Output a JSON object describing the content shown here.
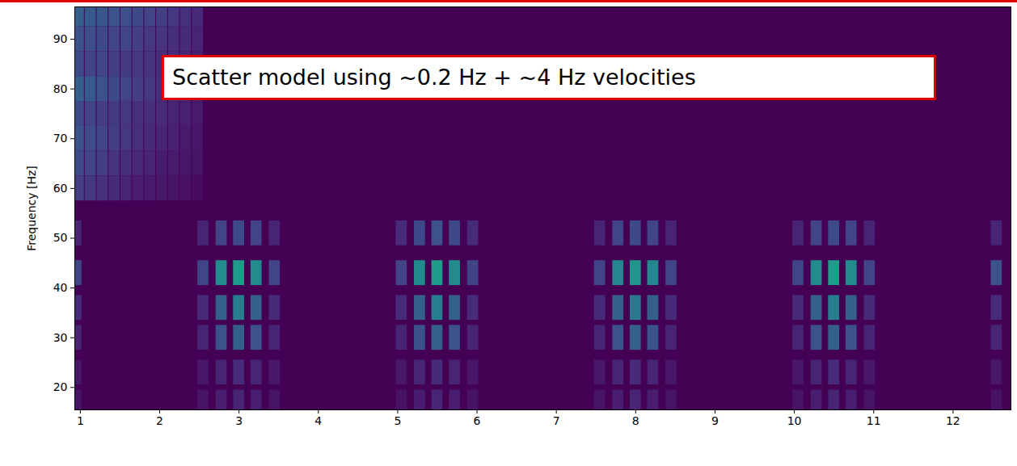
{
  "chart_data": {
    "type": "heatmap",
    "annotations": [
      "Scatter model using ~0.2 Hz + ~4 Hz velocities"
    ],
    "ylabel": "Frequency [Hz]",
    "xlim": [
      0.93,
      12.73
    ],
    "ylim": [
      15.5,
      96.5
    ],
    "xticks": [
      1,
      2,
      3,
      4,
      5,
      6,
      7,
      8,
      9,
      10,
      11,
      12
    ],
    "yticks": [
      20,
      30,
      40,
      50,
      60,
      70,
      80,
      90
    ],
    "zlim": [
      0,
      1
    ],
    "cell_width": 0.14,
    "cell_height": 5,
    "cells": [
      [
        0.98,
        95,
        0.3
      ],
      [
        1.13,
        95,
        0.28
      ],
      [
        1.28,
        95,
        0.27
      ],
      [
        1.43,
        95,
        0.25
      ],
      [
        1.58,
        95,
        0.24
      ],
      [
        1.73,
        95,
        0.22
      ],
      [
        1.88,
        95,
        0.2
      ],
      [
        2.03,
        95,
        0.18
      ],
      [
        2.18,
        95,
        0.16
      ],
      [
        2.33,
        95,
        0.14
      ],
      [
        2.48,
        95,
        0.12
      ],
      [
        0.98,
        90,
        0.25
      ],
      [
        1.13,
        90,
        0.24
      ],
      [
        1.28,
        90,
        0.22
      ],
      [
        1.43,
        90,
        0.2
      ],
      [
        1.58,
        90,
        0.2
      ],
      [
        1.73,
        90,
        0.18
      ],
      [
        1.88,
        90,
        0.16
      ],
      [
        2.03,
        90,
        0.15
      ],
      [
        2.18,
        90,
        0.13
      ],
      [
        2.33,
        90,
        0.12
      ],
      [
        2.48,
        90,
        0.1
      ],
      [
        0.98,
        85,
        0.22
      ],
      [
        1.13,
        85,
        0.2
      ],
      [
        1.28,
        85,
        0.2
      ],
      [
        1.43,
        85,
        0.18
      ],
      [
        1.58,
        85,
        0.17
      ],
      [
        1.73,
        85,
        0.16
      ],
      [
        1.88,
        85,
        0.15
      ],
      [
        2.03,
        85,
        0.13
      ],
      [
        2.18,
        85,
        0.12
      ],
      [
        2.33,
        85,
        0.1
      ],
      [
        2.48,
        85,
        0.09
      ],
      [
        0.98,
        80,
        0.3
      ],
      [
        1.13,
        80,
        0.28
      ],
      [
        1.28,
        80,
        0.25
      ],
      [
        1.43,
        80,
        0.22
      ],
      [
        1.58,
        80,
        0.2
      ],
      [
        1.73,
        80,
        0.18
      ],
      [
        1.88,
        80,
        0.16
      ],
      [
        2.03,
        80,
        0.14
      ],
      [
        2.18,
        80,
        0.12
      ],
      [
        2.33,
        80,
        0.1
      ],
      [
        2.48,
        80,
        0.08
      ],
      [
        0.98,
        75,
        0.22
      ],
      [
        1.13,
        75,
        0.2
      ],
      [
        1.28,
        75,
        0.18
      ],
      [
        1.43,
        75,
        0.17
      ],
      [
        1.58,
        75,
        0.16
      ],
      [
        1.73,
        75,
        0.14
      ],
      [
        1.88,
        75,
        0.13
      ],
      [
        2.03,
        75,
        0.12
      ],
      [
        2.18,
        75,
        0.1
      ],
      [
        2.33,
        75,
        0.09
      ],
      [
        2.48,
        75,
        0.07
      ],
      [
        0.98,
        70,
        0.25
      ],
      [
        1.13,
        70,
        0.23
      ],
      [
        1.28,
        70,
        0.2
      ],
      [
        1.43,
        70,
        0.18
      ],
      [
        1.58,
        70,
        0.16
      ],
      [
        1.73,
        70,
        0.14
      ],
      [
        1.88,
        70,
        0.12
      ],
      [
        2.03,
        70,
        0.1
      ],
      [
        2.18,
        70,
        0.09
      ],
      [
        2.33,
        70,
        0.07
      ],
      [
        2.48,
        70,
        0.06
      ],
      [
        0.98,
        65,
        0.22
      ],
      [
        1.13,
        65,
        0.2
      ],
      [
        1.28,
        65,
        0.18
      ],
      [
        1.43,
        65,
        0.15
      ],
      [
        1.58,
        65,
        0.13
      ],
      [
        1.73,
        65,
        0.11
      ],
      [
        1.88,
        65,
        0.1
      ],
      [
        2.03,
        65,
        0.08
      ],
      [
        2.18,
        65,
        0.07
      ],
      [
        2.33,
        65,
        0.06
      ],
      [
        2.48,
        65,
        0.05
      ],
      [
        0.98,
        60,
        0.18
      ],
      [
        1.13,
        60,
        0.16
      ],
      [
        1.28,
        60,
        0.14
      ],
      [
        1.43,
        60,
        0.12
      ],
      [
        1.58,
        60,
        0.1
      ],
      [
        1.73,
        60,
        0.08
      ],
      [
        1.88,
        60,
        0.07
      ],
      [
        2.03,
        60,
        0.06
      ],
      [
        2.18,
        60,
        0.05
      ],
      [
        2.33,
        60,
        0.04
      ],
      [
        2.48,
        60,
        0.03
      ],
      [
        0.95,
        17,
        0.05
      ],
      [
        0.95,
        23,
        0.06
      ],
      [
        0.95,
        30,
        0.1
      ],
      [
        0.95,
        36,
        0.12
      ],
      [
        0.95,
        43,
        0.2
      ],
      [
        0.95,
        51,
        0.1
      ],
      [
        2.55,
        17,
        0.05
      ],
      [
        2.55,
        23,
        0.06
      ],
      [
        2.55,
        30,
        0.1
      ],
      [
        2.55,
        36,
        0.12
      ],
      [
        2.55,
        43,
        0.2
      ],
      [
        2.55,
        51,
        0.1
      ],
      [
        2.78,
        17,
        0.08
      ],
      [
        2.78,
        23,
        0.1
      ],
      [
        2.78,
        30,
        0.25
      ],
      [
        2.78,
        36,
        0.3
      ],
      [
        2.78,
        43,
        0.48
      ],
      [
        2.78,
        51,
        0.2
      ],
      [
        3.0,
        17,
        0.1
      ],
      [
        3.0,
        23,
        0.12
      ],
      [
        3.0,
        30,
        0.3
      ],
      [
        3.0,
        36,
        0.42
      ],
      [
        3.0,
        43,
        0.55
      ],
      [
        3.0,
        51,
        0.22
      ],
      [
        3.22,
        17,
        0.08
      ],
      [
        3.22,
        23,
        0.1
      ],
      [
        3.22,
        30,
        0.25
      ],
      [
        3.22,
        36,
        0.3
      ],
      [
        3.22,
        43,
        0.48
      ],
      [
        3.22,
        51,
        0.2
      ],
      [
        3.45,
        17,
        0.05
      ],
      [
        3.45,
        23,
        0.06
      ],
      [
        3.45,
        30,
        0.1
      ],
      [
        3.45,
        36,
        0.12
      ],
      [
        3.45,
        43,
        0.2
      ],
      [
        3.45,
        51,
        0.1
      ],
      [
        5.05,
        17,
        0.05
      ],
      [
        5.05,
        23,
        0.06
      ],
      [
        5.05,
        30,
        0.1
      ],
      [
        5.05,
        36,
        0.12
      ],
      [
        5.05,
        43,
        0.2
      ],
      [
        5.05,
        51,
        0.12
      ],
      [
        5.28,
        17,
        0.08
      ],
      [
        5.28,
        23,
        0.1
      ],
      [
        5.28,
        30,
        0.25
      ],
      [
        5.28,
        36,
        0.3
      ],
      [
        5.28,
        43,
        0.48
      ],
      [
        5.28,
        51,
        0.22
      ],
      [
        5.5,
        17,
        0.1
      ],
      [
        5.5,
        23,
        0.12
      ],
      [
        5.5,
        30,
        0.3
      ],
      [
        5.5,
        36,
        0.42
      ],
      [
        5.5,
        43,
        0.55
      ],
      [
        5.5,
        51,
        0.25
      ],
      [
        5.72,
        17,
        0.08
      ],
      [
        5.72,
        23,
        0.1
      ],
      [
        5.72,
        30,
        0.25
      ],
      [
        5.72,
        36,
        0.3
      ],
      [
        5.72,
        43,
        0.48
      ],
      [
        5.72,
        51,
        0.22
      ],
      [
        5.95,
        17,
        0.05
      ],
      [
        5.95,
        23,
        0.06
      ],
      [
        5.95,
        30,
        0.1
      ],
      [
        5.95,
        36,
        0.12
      ],
      [
        5.95,
        43,
        0.2
      ],
      [
        5.95,
        51,
        0.12
      ],
      [
        7.55,
        17,
        0.05
      ],
      [
        7.55,
        23,
        0.06
      ],
      [
        7.55,
        30,
        0.1
      ],
      [
        7.55,
        36,
        0.12
      ],
      [
        7.55,
        43,
        0.2
      ],
      [
        7.55,
        51,
        0.1
      ],
      [
        7.78,
        17,
        0.08
      ],
      [
        7.78,
        23,
        0.1
      ],
      [
        7.78,
        30,
        0.25
      ],
      [
        7.78,
        36,
        0.3
      ],
      [
        7.78,
        43,
        0.46
      ],
      [
        7.78,
        51,
        0.2
      ],
      [
        8.0,
        17,
        0.1
      ],
      [
        8.0,
        23,
        0.12
      ],
      [
        8.0,
        30,
        0.3
      ],
      [
        8.0,
        36,
        0.4
      ],
      [
        8.0,
        43,
        0.52
      ],
      [
        8.0,
        51,
        0.22
      ],
      [
        8.22,
        17,
        0.08
      ],
      [
        8.22,
        23,
        0.1
      ],
      [
        8.22,
        30,
        0.25
      ],
      [
        8.22,
        36,
        0.3
      ],
      [
        8.22,
        43,
        0.46
      ],
      [
        8.22,
        51,
        0.2
      ],
      [
        8.45,
        17,
        0.05
      ],
      [
        8.45,
        23,
        0.06
      ],
      [
        8.45,
        30,
        0.1
      ],
      [
        8.45,
        36,
        0.12
      ],
      [
        8.45,
        43,
        0.2
      ],
      [
        8.45,
        51,
        0.1
      ],
      [
        10.05,
        17,
        0.05
      ],
      [
        10.05,
        23,
        0.06
      ],
      [
        10.05,
        30,
        0.1
      ],
      [
        10.05,
        36,
        0.12
      ],
      [
        10.05,
        43,
        0.2
      ],
      [
        10.05,
        51,
        0.1
      ],
      [
        10.28,
        17,
        0.08
      ],
      [
        10.28,
        23,
        0.1
      ],
      [
        10.28,
        30,
        0.25
      ],
      [
        10.28,
        36,
        0.3
      ],
      [
        10.28,
        43,
        0.48
      ],
      [
        10.28,
        51,
        0.2
      ],
      [
        10.5,
        17,
        0.1
      ],
      [
        10.5,
        23,
        0.12
      ],
      [
        10.5,
        30,
        0.3
      ],
      [
        10.5,
        36,
        0.42
      ],
      [
        10.5,
        43,
        0.55
      ],
      [
        10.5,
        51,
        0.22
      ],
      [
        10.72,
        17,
        0.08
      ],
      [
        10.72,
        23,
        0.1
      ],
      [
        10.72,
        30,
        0.25
      ],
      [
        10.72,
        36,
        0.3
      ],
      [
        10.72,
        43,
        0.48
      ],
      [
        10.72,
        51,
        0.2
      ],
      [
        10.95,
        17,
        0.05
      ],
      [
        10.95,
        23,
        0.06
      ],
      [
        10.95,
        30,
        0.1
      ],
      [
        10.95,
        36,
        0.12
      ],
      [
        10.95,
        43,
        0.2
      ],
      [
        10.95,
        51,
        0.1
      ],
      [
        12.55,
        17,
        0.05
      ],
      [
        12.55,
        23,
        0.06
      ],
      [
        12.55,
        30,
        0.1
      ],
      [
        12.55,
        36,
        0.12
      ],
      [
        12.55,
        43,
        0.25
      ],
      [
        12.55,
        51,
        0.1
      ]
    ]
  }
}
